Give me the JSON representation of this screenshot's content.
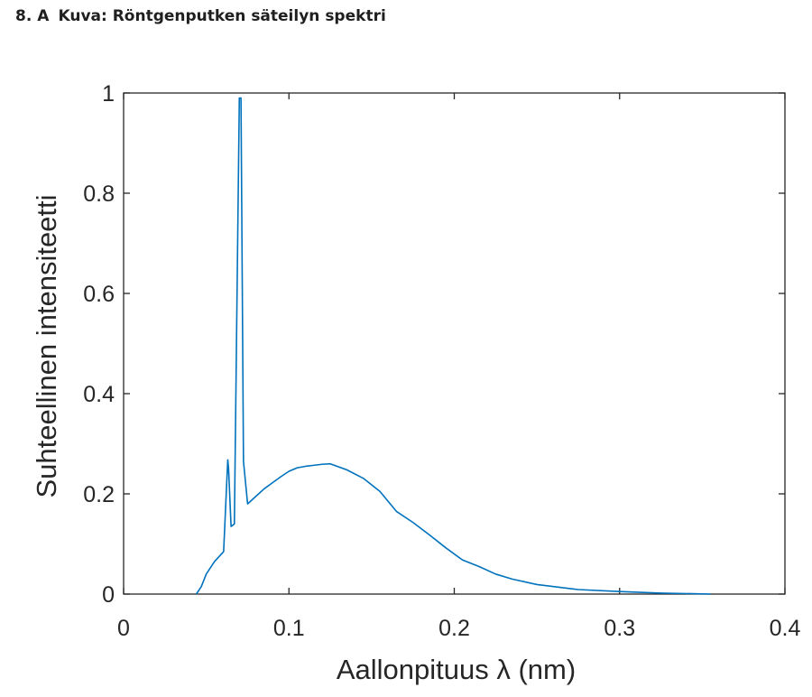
{
  "heading": {
    "number": "8.",
    "letter": "A",
    "caption": "Kuva: Röntgenputken säteilyn spektri"
  },
  "chart_data": {
    "type": "line",
    "title": "",
    "xlabel": "Aallonpituus λ (nm)",
    "ylabel": "Suhteellinen intensiteetti",
    "xlim": [
      0,
      0.4
    ],
    "ylim": [
      0,
      1
    ],
    "xticks": [
      0,
      0.1,
      0.2,
      0.3,
      0.4
    ],
    "xtick_labels": [
      "0",
      "0.1",
      "0.2",
      "0.3",
      "0.4"
    ],
    "yticks": [
      0,
      0.2,
      0.4,
      0.6,
      0.8,
      1
    ],
    "ytick_labels": [
      "0",
      "0.2",
      "0.4",
      "0.6",
      "0.8",
      "1"
    ],
    "grid": false,
    "line_color": "#0072BD",
    "axis_color": "#262626",
    "series": [
      {
        "x": [
          0.044,
          0.047,
          0.05,
          0.055,
          0.06,
          0.0605,
          0.063,
          0.0635,
          0.065,
          0.067,
          0.07,
          0.071,
          0.0725,
          0.075,
          0.08,
          0.085,
          0.09,
          0.095,
          0.1,
          0.105,
          0.11,
          0.115,
          0.12,
          0.125,
          0.135,
          0.145,
          0.155,
          0.165,
          0.175,
          0.185,
          0.195,
          0.205,
          0.215,
          0.225,
          0.235,
          0.25,
          0.275,
          0.3,
          0.325,
          0.355
        ],
        "y": [
          0.0,
          0.015,
          0.04,
          0.065,
          0.083,
          0.085,
          0.268,
          0.25,
          0.135,
          0.14,
          0.99,
          0.99,
          0.265,
          0.18,
          0.195,
          0.21,
          0.222,
          0.234,
          0.245,
          0.252,
          0.255,
          0.257,
          0.259,
          0.26,
          0.248,
          0.231,
          0.205,
          0.165,
          0.143,
          0.118,
          0.092,
          0.068,
          0.055,
          0.04,
          0.03,
          0.019,
          0.009,
          0.005,
          0.002,
          0.0
        ]
      }
    ]
  }
}
